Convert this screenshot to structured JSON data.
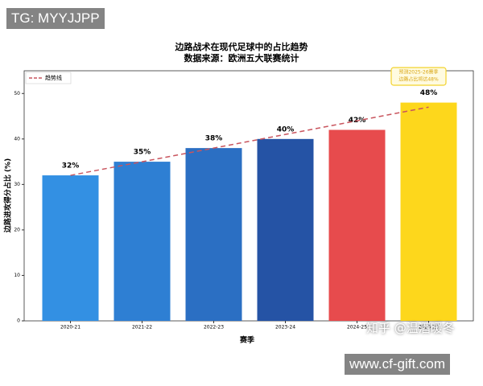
{
  "chart_data": {
    "type": "bar",
    "title": "边路战术在现代足球中的占比趋势",
    "subtitle": "数据来源：欧洲五大联赛统计",
    "y_label": "边路进攻得分占比 (%)",
    "x_label": "赛季",
    "categories": [
      "2020-21",
      "2021-22",
      "2022-23",
      "2023-24",
      "2024-25",
      "2025-26"
    ],
    "values": [
      32,
      35,
      38,
      40,
      42,
      48
    ],
    "value_labels": [
      "32%",
      "35%",
      "38%",
      "40%",
      "42%",
      "48%"
    ],
    "colors": [
      "#3390e3",
      "#2e7fd3",
      "#2b6fc3",
      "#2553a5",
      "#e74b4d",
      "#fdd71c"
    ],
    "trend": {
      "name": "趋势线",
      "color": "#c9555e",
      "values": [
        32,
        35,
        38,
        41,
        44,
        47
      ]
    },
    "annotation": [
      "预测2025-26赛季",
      "边路占比将达48%"
    ],
    "ylim": [
      0,
      55
    ],
    "yticks": [
      0,
      10,
      20,
      30,
      40,
      50
    ],
    "legend": "upper left"
  },
  "overlays": {
    "tg": "TG: MYYJJPP",
    "site": "www.cf-gift.com",
    "zhihu": "知乎 @温酒暖冬"
  }
}
